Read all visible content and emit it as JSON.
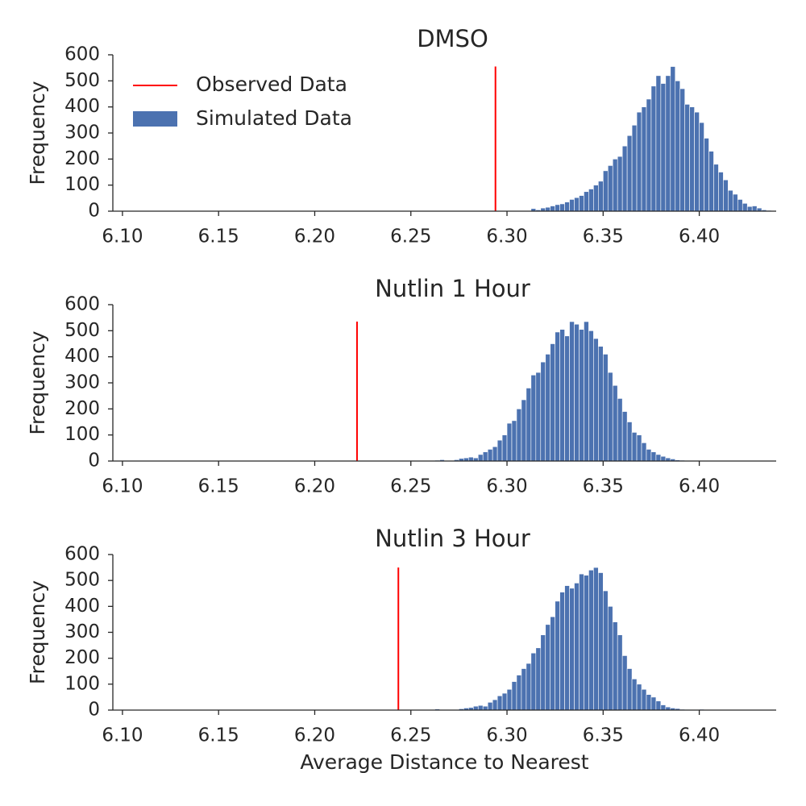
{
  "chart_data": [
    {
      "type": "histogram",
      "title": "DMSO",
      "ylabel": "Frequency",
      "color": "#4c72b0",
      "line_color": "#ff0000",
      "line_x": 6.294,
      "legend": {
        "loc": "upper left",
        "entries": [
          "Observed Data",
          "Simulated Data"
        ]
      },
      "bins": [
        6.3125,
        6.315,
        6.3175,
        6.32,
        6.3225,
        6.325,
        6.3275,
        6.33,
        6.3325,
        6.335,
        6.3375,
        6.34,
        6.3425,
        6.345,
        6.3475,
        6.35,
        6.3525,
        6.355,
        6.3575,
        6.36,
        6.3625,
        6.365,
        6.3675,
        6.37,
        6.3725,
        6.375,
        6.3775,
        6.38,
        6.3825,
        6.385,
        6.3875,
        6.39,
        6.3925,
        6.395,
        6.3975,
        6.4,
        6.4025,
        6.405,
        6.4075,
        6.41,
        6.4125,
        6.415,
        6.4175,
        6.42,
        6.4225,
        6.425,
        6.4275,
        6.43,
        6.4325,
        6.435,
        6.4375
      ],
      "counts": [
        10,
        5,
        12,
        15,
        20,
        25,
        28,
        35,
        45,
        52,
        60,
        75,
        85,
        100,
        115,
        155,
        175,
        200,
        210,
        250,
        290,
        330,
        380,
        400,
        430,
        480,
        520,
        490,
        520,
        555,
        500,
        470,
        410,
        400,
        380,
        340,
        280,
        230,
        180,
        150,
        120,
        80,
        65,
        45,
        30,
        18,
        20,
        12,
        5,
        3
      ],
      "xlim": [
        6.095,
        6.44
      ],
      "ylim": [
        0,
        600
      ],
      "xticks": [
        {
          "value": 6.1,
          "label": "6.10"
        },
        6.15,
        {
          "value": 6.2,
          "label": "6.20"
        },
        6.25,
        {
          "value": 6.3,
          "label": "6.30"
        },
        6.35,
        {
          "value": 6.4,
          "label": "6.40"
        }
      ],
      "yticks": [
        0,
        100,
        200,
        300,
        400,
        500,
        600
      ]
    },
    {
      "type": "histogram",
      "title": "Nutlin 1 Hour",
      "ylabel": "Frequency",
      "color": "#4c72b0",
      "line_color": "#ff0000",
      "line_x": 6.222,
      "bins": [
        6.2625,
        6.265,
        6.2675,
        6.27,
        6.2725,
        6.275,
        6.2775,
        6.28,
        6.2825,
        6.285,
        6.2875,
        6.29,
        6.2925,
        6.295,
        6.2975,
        6.3,
        6.3025,
        6.305,
        6.3075,
        6.31,
        6.3125,
        6.315,
        6.3175,
        6.32,
        6.3225,
        6.325,
        6.3275,
        6.33,
        6.3325,
        6.335,
        6.3375,
        6.34,
        6.3425,
        6.345,
        6.3475,
        6.35,
        6.3525,
        6.355,
        6.3575,
        6.36,
        6.3625,
        6.365,
        6.3675,
        6.37,
        6.3725,
        6.375,
        6.3775,
        6.38,
        6.3825,
        6.385,
        6.3875,
        6.39,
        6.3925,
        6.395,
        6.3975
      ],
      "counts": [
        3,
        5,
        2,
        0,
        5,
        10,
        12,
        15,
        12,
        25,
        35,
        45,
        55,
        80,
        100,
        145,
        155,
        200,
        235,
        280,
        330,
        340,
        380,
        410,
        450,
        495,
        505,
        480,
        535,
        525,
        505,
        535,
        500,
        470,
        440,
        410,
        340,
        290,
        240,
        190,
        150,
        110,
        100,
        70,
        45,
        35,
        25,
        18,
        12,
        8,
        4,
        3,
        2,
        1
      ],
      "xlim": [
        6.095,
        6.44
      ],
      "ylim": [
        0,
        600
      ],
      "xticks": [
        {
          "value": 6.1,
          "label": "6.10"
        },
        6.15,
        {
          "value": 6.2,
          "label": "6.20"
        },
        6.25,
        {
          "value": 6.3,
          "label": "6.30"
        },
        6.35,
        {
          "value": 6.4,
          "label": "6.40"
        }
      ],
      "yticks": [
        0,
        100,
        200,
        300,
        400,
        500,
        600
      ]
    },
    {
      "type": "histogram",
      "title": "Nutlin 3 Hour",
      "ylabel": "Frequency",
      "xlabel": "Average Distance to Nearest",
      "color": "#4c72b0",
      "line_color": "#ff0000",
      "line_x": 6.2435,
      "bins": [
        6.2625,
        6.265,
        6.2675,
        6.27,
        6.2725,
        6.275,
        6.2775,
        6.28,
        6.2825,
        6.285,
        6.2875,
        6.29,
        6.2925,
        6.295,
        6.2975,
        6.3,
        6.3025,
        6.305,
        6.3075,
        6.31,
        6.3125,
        6.315,
        6.3175,
        6.32,
        6.3225,
        6.325,
        6.3275,
        6.33,
        6.3325,
        6.335,
        6.3375,
        6.34,
        6.3425,
        6.345,
        6.3475,
        6.35,
        6.3525,
        6.355,
        6.3575,
        6.36,
        6.3625,
        6.365,
        6.3675,
        6.37,
        6.3725,
        6.375,
        6.3775,
        6.38,
        6.3825,
        6.385,
        6.3875,
        6.39,
        6.3925,
        6.395,
        6.3975,
        6.4,
        6.4025
      ],
      "counts": [
        4,
        0,
        0,
        0,
        0,
        5,
        8,
        10,
        15,
        18,
        15,
        30,
        40,
        55,
        65,
        80,
        110,
        135,
        160,
        180,
        220,
        240,
        290,
        330,
        360,
        420,
        455,
        480,
        470,
        490,
        525,
        520,
        540,
        550,
        530,
        460,
        400,
        340,
        290,
        210,
        160,
        120,
        100,
        80,
        60,
        50,
        35,
        20,
        12,
        8,
        6,
        3,
        2,
        1,
        1,
        3
      ],
      "xlim": [
        6.095,
        6.44
      ],
      "ylim": [
        0,
        600
      ],
      "xticks": [
        {
          "value": 6.1,
          "label": "6.10"
        },
        6.15,
        {
          "value": 6.2,
          "label": "6.20"
        },
        6.25,
        {
          "value": 6.3,
          "label": "6.30"
        },
        6.35,
        {
          "value": 6.4,
          "label": "6.40"
        }
      ],
      "yticks": [
        0,
        100,
        200,
        300,
        400,
        500,
        600
      ]
    }
  ]
}
